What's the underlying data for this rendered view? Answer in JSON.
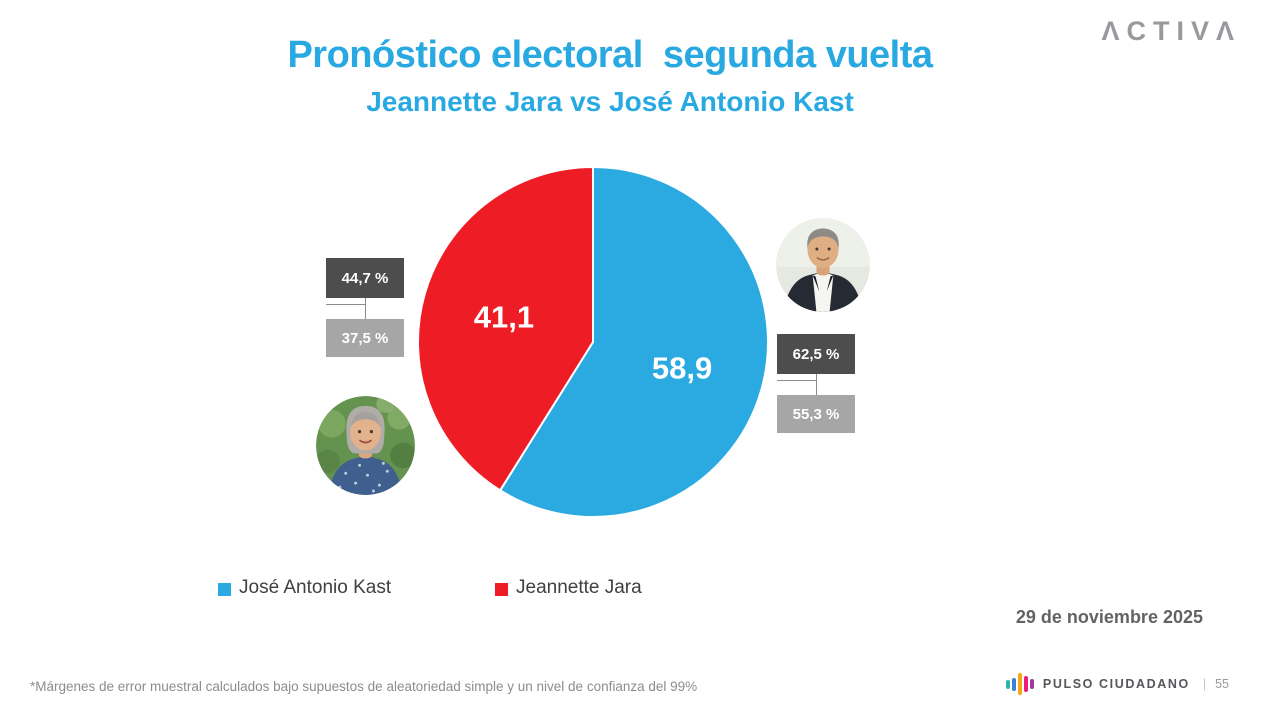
{
  "header": {
    "title": "Pronóstico electoral  segunda vuelta",
    "subtitle": "Jeannette Jara vs José Antonio Kast",
    "title_color": "#29A9E1"
  },
  "brand_logo": "ΛCTIVΛ",
  "chart_data": {
    "type": "pie",
    "title": "Pronóstico electoral segunda vuelta",
    "subtitle": "Jeannette Jara vs José Antonio Kast",
    "unit": "%",
    "decimal_separator": ",",
    "start_angle": "top",
    "direction": "clockwise",
    "legend_position": "bottom",
    "series": [
      {
        "name": "José Antonio Kast",
        "value": 58.9,
        "label": "58,9",
        "color": "#2BAAE2",
        "margin_high_label": "62,5 %",
        "margin_low_label": "55,3 %"
      },
      {
        "name": "Jeannette Jara",
        "value": 41.1,
        "label": "41,1",
        "color": "#EE1C25",
        "margin_high_label": "44,7 %",
        "margin_low_label": "37,5 %"
      }
    ]
  },
  "legend": [
    {
      "label": "José Antonio Kast",
      "color": "#2BAAE2"
    },
    {
      "label": "Jeannette Jara",
      "color": "#EE1C25"
    }
  ],
  "date_label": "29 de noviembre 2025",
  "footnote": "*Márgenes de error muestral calculados bajo supuestos de aleatoriedad simple y un nivel de confianza del 99%",
  "footer": {
    "brand": "PULSO CIUDADANO",
    "separator": "|",
    "page": "55",
    "icon_bar_colors": [
      "#2BB7B0",
      "#3E7EDB",
      "#F9A51A",
      "#EC1E79",
      "#A3359C"
    ]
  },
  "colors": {
    "dark_box": "#4D4D4D",
    "light_box": "#A6A6A6",
    "slice_label_text": "#FFFFFF"
  }
}
